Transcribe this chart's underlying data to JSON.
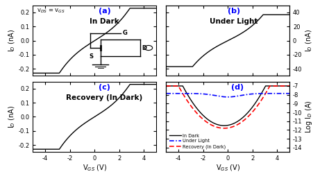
{
  "title_a": "(a)",
  "title_b": "(b)",
  "title_c": "(c)",
  "title_d": "(d)",
  "label_a": "In Dark",
  "label_b": "Under Light",
  "label_c": "Recovery (In Dark)",
  "vds_text": "v$_{DS}$ = v$_{GS}$",
  "xlabel": "V$_{GS}$ (V)",
  "ylabel_left": "I$_D$ (nA)",
  "ylabel_right_top": "I$_D$ (nA)",
  "ylabel_right_bot": "Log I$_D$ (A)",
  "xlim": [
    -5,
    5
  ],
  "ylim_nA": [
    -0.25,
    0.25
  ],
  "ylim_nA_b": [
    -50,
    50
  ],
  "ylim_log": [
    -14.5,
    -6.5
  ],
  "xticks": [
    -4,
    -2,
    0,
    2,
    4
  ],
  "yticks_nA": [
    -0.2,
    -0.1,
    0.0,
    0.1,
    0.2
  ],
  "yticks_nA_b": [
    -40,
    -20,
    0,
    20,
    40
  ],
  "yticks_log": [
    -14,
    -13,
    -12,
    -11,
    -10,
    -9,
    -8,
    -7
  ],
  "bg_color": "#ffffff",
  "grid_color": "#cccccc",
  "line_dark": "#000000",
  "line_light": "#0000ff",
  "line_recovery": "#ff0000"
}
